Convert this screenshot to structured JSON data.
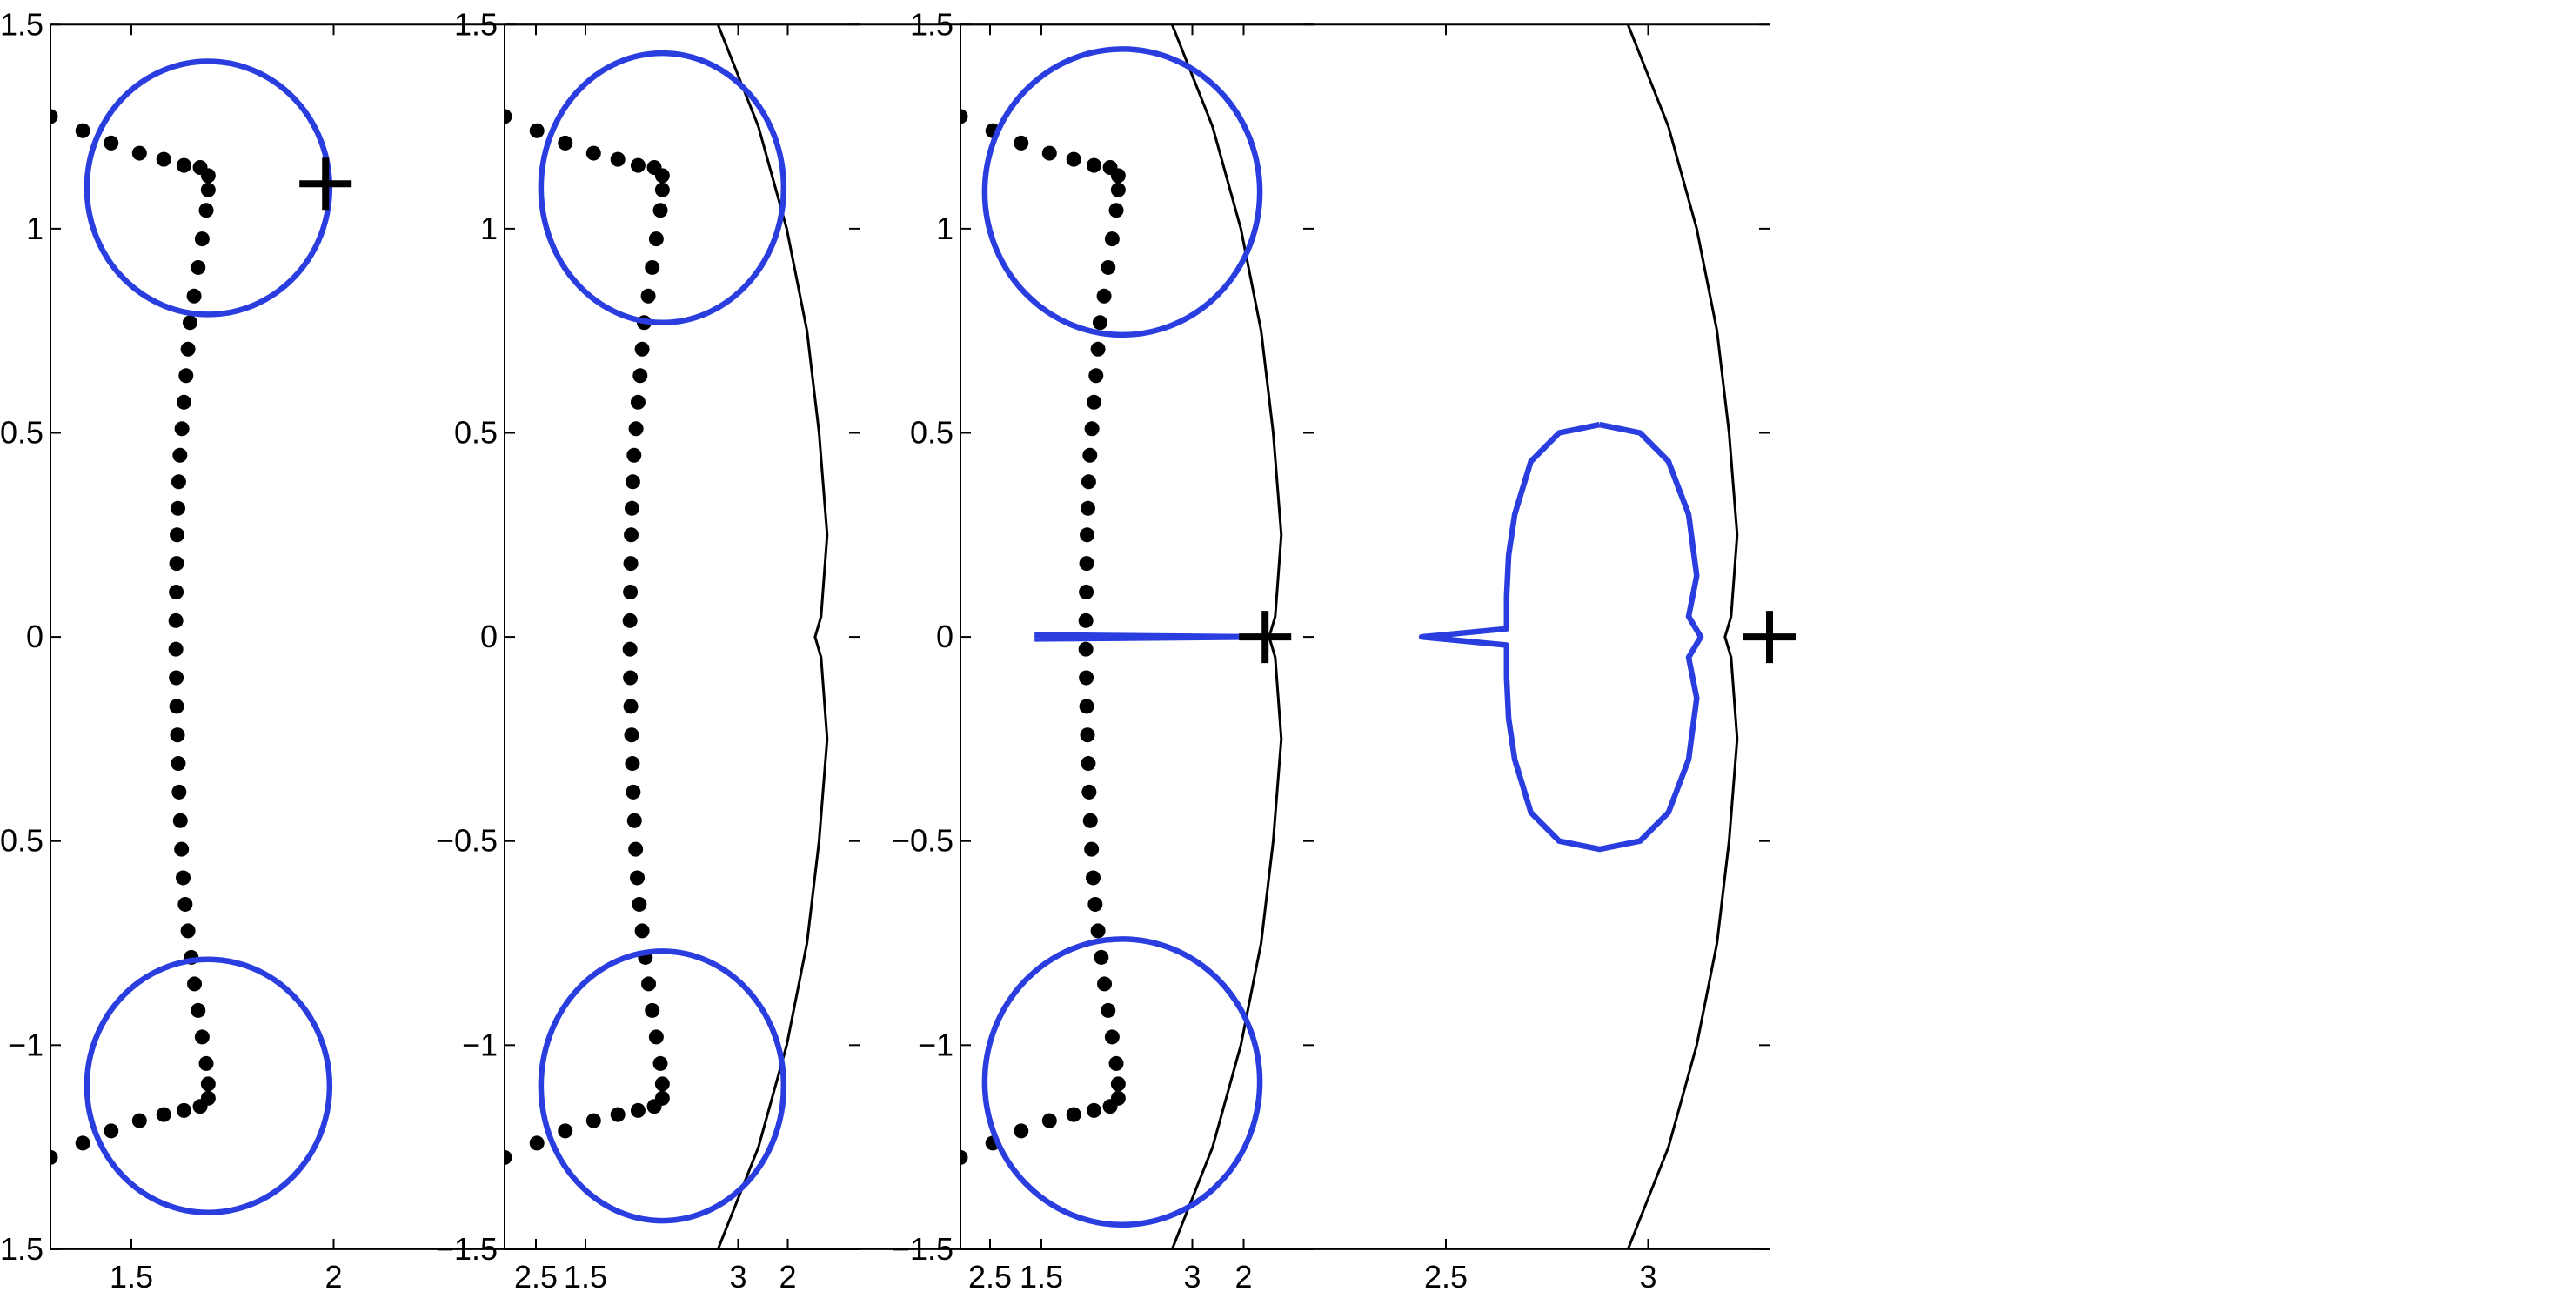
{
  "colors": {
    "contour": "#2a3ee0",
    "points": "#000000",
    "axes": "#000000"
  },
  "chart_data": [
    {
      "type": "scatter",
      "title": "",
      "xlabel": "",
      "ylabel": "",
      "xlim": [
        1.3,
        3.3
      ],
      "ylim": [
        -1.5,
        1.5
      ],
      "xticks": [
        "1.5",
        "2",
        "2.5",
        "3"
      ],
      "yticks": [
        "-1.5",
        "-1",
        "-0.5",
        "0",
        "0.5",
        "1",
        "1.5"
      ],
      "grid": false,
      "series": [
        {
          "kind": "points",
          "points": [
            [
              1.3,
              1.275
            ],
            [
              1.38,
              1.24
            ],
            [
              1.45,
              1.21
            ],
            [
              1.52,
              1.185
            ],
            [
              1.58,
              1.17
            ],
            [
              1.63,
              1.155
            ],
            [
              1.67,
              1.15
            ],
            [
              1.69,
              1.13
            ],
            [
              1.69,
              1.095
            ],
            [
              1.685,
              1.045
            ],
            [
              1.675,
              0.975
            ],
            [
              1.665,
              0.905
            ],
            [
              1.655,
              0.835
            ],
            [
              1.645,
              0.77
            ],
            [
              1.64,
              0.705
            ],
            [
              1.635,
              0.64
            ],
            [
              1.63,
              0.575
            ],
            [
              1.625,
              0.51
            ],
            [
              1.62,
              0.445
            ],
            [
              1.617,
              0.38
            ],
            [
              1.615,
              0.315
            ],
            [
              1.613,
              0.25
            ],
            [
              1.612,
              0.18
            ],
            [
              1.611,
              0.11
            ],
            [
              1.61,
              0.04
            ],
            [
              1.61,
              -0.03
            ],
            [
              1.611,
              -0.1
            ],
            [
              1.612,
              -0.17
            ],
            [
              1.614,
              -0.24
            ],
            [
              1.616,
              -0.31
            ],
            [
              1.618,
              -0.38
            ],
            [
              1.621,
              -0.45
            ],
            [
              1.624,
              -0.52
            ],
            [
              1.628,
              -0.59
            ],
            [
              1.633,
              -0.655
            ],
            [
              1.64,
              -0.72
            ],
            [
              1.648,
              -0.785
            ],
            [
              1.656,
              -0.85
            ],
            [
              1.665,
              -0.915
            ],
            [
              1.675,
              -0.98
            ],
            [
              1.685,
              -1.045
            ],
            [
              1.69,
              -1.095
            ],
            [
              1.69,
              -1.13
            ],
            [
              1.67,
              -1.15
            ],
            [
              1.63,
              -1.16
            ],
            [
              1.58,
              -1.17
            ],
            [
              1.52,
              -1.185
            ],
            [
              1.45,
              -1.21
            ],
            [
              1.38,
              -1.24
            ],
            [
              1.3,
              -1.275
            ]
          ]
        },
        {
          "kind": "boundary",
          "points": [
            [
              2.95,
              1.5
            ],
            [
              3.05,
              1.25
            ],
            [
              3.12,
              1.0
            ],
            [
              3.17,
              0.75
            ],
            [
              3.2,
              0.5
            ],
            [
              3.22,
              0.25
            ],
            [
              3.205,
              0.05
            ],
            [
              3.19,
              0.0
            ],
            [
              3.205,
              -0.05
            ],
            [
              3.22,
              -0.25
            ],
            [
              3.2,
              -0.5
            ],
            [
              3.17,
              -0.75
            ],
            [
              3.12,
              -1.0
            ],
            [
              3.05,
              -1.25
            ],
            [
              2.95,
              -1.5
            ]
          ]
        },
        {
          "kind": "contour",
          "shape": "ellipse",
          "center": [
            1.69,
            1.1
          ],
          "radius": [
            0.3,
            0.31
          ]
        },
        {
          "kind": "contour",
          "shape": "ellipse",
          "center": [
            1.69,
            -1.1
          ],
          "radius": [
            0.3,
            0.31
          ]
        },
        {
          "kind": "marker",
          "symbol": "plus",
          "point": [
            1.98,
            1.11
          ]
        }
      ]
    },
    {
      "type": "scatter",
      "title": "",
      "xlabel": "",
      "ylabel": "",
      "xlim": [
        1.3,
        3.3
      ],
      "ylim": [
        -1.5,
        1.5
      ],
      "xticks": [
        "1.5",
        "2",
        "2.5",
        "3"
      ],
      "yticks": [
        "-1.5",
        "-1",
        "-0.5",
        "0",
        "0.5",
        "1",
        "1.5"
      ],
      "grid": false,
      "series": [
        {
          "kind": "points",
          "points": [
            [
              1.3,
              1.275
            ],
            [
              1.38,
              1.24
            ],
            [
              1.45,
              1.21
            ],
            [
              1.52,
              1.185
            ],
            [
              1.58,
              1.17
            ],
            [
              1.63,
              1.155
            ],
            [
              1.67,
              1.15
            ],
            [
              1.69,
              1.13
            ],
            [
              1.69,
              1.095
            ],
            [
              1.685,
              1.045
            ],
            [
              1.675,
              0.975
            ],
            [
              1.665,
              0.905
            ],
            [
              1.655,
              0.835
            ],
            [
              1.645,
              0.77
            ],
            [
              1.64,
              0.705
            ],
            [
              1.635,
              0.64
            ],
            [
              1.63,
              0.575
            ],
            [
              1.625,
              0.51
            ],
            [
              1.62,
              0.445
            ],
            [
              1.617,
              0.38
            ],
            [
              1.615,
              0.315
            ],
            [
              1.613,
              0.25
            ],
            [
              1.612,
              0.18
            ],
            [
              1.611,
              0.11
            ],
            [
              1.61,
              0.04
            ],
            [
              1.61,
              -0.03
            ],
            [
              1.611,
              -0.1
            ],
            [
              1.612,
              -0.17
            ],
            [
              1.614,
              -0.24
            ],
            [
              1.616,
              -0.31
            ],
            [
              1.618,
              -0.38
            ],
            [
              1.621,
              -0.45
            ],
            [
              1.624,
              -0.52
            ],
            [
              1.628,
              -0.59
            ],
            [
              1.633,
              -0.655
            ],
            [
              1.64,
              -0.72
            ],
            [
              1.648,
              -0.785
            ],
            [
              1.656,
              -0.85
            ],
            [
              1.665,
              -0.915
            ],
            [
              1.675,
              -0.98
            ],
            [
              1.685,
              -1.045
            ],
            [
              1.69,
              -1.095
            ],
            [
              1.69,
              -1.13
            ],
            [
              1.67,
              -1.15
            ],
            [
              1.63,
              -1.16
            ],
            [
              1.58,
              -1.17
            ],
            [
              1.52,
              -1.185
            ],
            [
              1.45,
              -1.21
            ],
            [
              1.38,
              -1.24
            ],
            [
              1.3,
              -1.275
            ]
          ]
        },
        {
          "kind": "boundary",
          "points": [
            [
              2.95,
              1.5
            ],
            [
              3.05,
              1.25
            ],
            [
              3.12,
              1.0
            ],
            [
              3.17,
              0.75
            ],
            [
              3.2,
              0.5
            ],
            [
              3.22,
              0.25
            ],
            [
              3.205,
              0.05
            ],
            [
              3.19,
              0.0
            ],
            [
              3.205,
              -0.05
            ],
            [
              3.22,
              -0.25
            ],
            [
              3.2,
              -0.5
            ],
            [
              3.17,
              -0.75
            ],
            [
              3.12,
              -1.0
            ],
            [
              3.05,
              -1.25
            ],
            [
              2.95,
              -1.5
            ]
          ]
        },
        {
          "kind": "contour",
          "shape": "ellipse",
          "center": [
            1.69,
            1.1
          ],
          "radius": [
            0.3,
            0.33
          ]
        },
        {
          "kind": "contour",
          "shape": "ellipse",
          "center": [
            1.69,
            -1.1
          ],
          "radius": [
            0.3,
            0.33
          ]
        },
        {
          "kind": "contour",
          "shape": "polyline",
          "points": [
            [
              2.61,
              0.005
            ],
            [
              3.18,
              0.0
            ],
            [
              2.61,
              -0.005
            ]
          ]
        },
        {
          "kind": "marker",
          "symbol": "plus",
          "point": [
            3.18,
            0.0
          ]
        }
      ]
    },
    {
      "type": "scatter",
      "title": "",
      "xlabel": "",
      "ylabel": "",
      "xlim": [
        1.3,
        3.3
      ],
      "ylim": [
        -1.5,
        1.5
      ],
      "xticks": [
        "1.5",
        "2",
        "2.5",
        "3"
      ],
      "yticks": [
        "-1.5",
        "-1",
        "-0.5",
        "0",
        "0.5",
        "1",
        "1.5"
      ],
      "grid": false,
      "series": [
        {
          "kind": "points",
          "points": [
            [
              1.3,
              1.275
            ],
            [
              1.38,
              1.24
            ],
            [
              1.45,
              1.21
            ],
            [
              1.52,
              1.185
            ],
            [
              1.58,
              1.17
            ],
            [
              1.63,
              1.155
            ],
            [
              1.67,
              1.15
            ],
            [
              1.69,
              1.13
            ],
            [
              1.69,
              1.095
            ],
            [
              1.685,
              1.045
            ],
            [
              1.675,
              0.975
            ],
            [
              1.665,
              0.905
            ],
            [
              1.655,
              0.835
            ],
            [
              1.645,
              0.77
            ],
            [
              1.64,
              0.705
            ],
            [
              1.635,
              0.64
            ],
            [
              1.63,
              0.575
            ],
            [
              1.625,
              0.51
            ],
            [
              1.62,
              0.445
            ],
            [
              1.617,
              0.38
            ],
            [
              1.615,
              0.315
            ],
            [
              1.613,
              0.25
            ],
            [
              1.612,
              0.18
            ],
            [
              1.611,
              0.11
            ],
            [
              1.61,
              0.04
            ],
            [
              1.61,
              -0.03
            ],
            [
              1.611,
              -0.1
            ],
            [
              1.612,
              -0.17
            ],
            [
              1.614,
              -0.24
            ],
            [
              1.616,
              -0.31
            ],
            [
              1.618,
              -0.38
            ],
            [
              1.621,
              -0.45
            ],
            [
              1.624,
              -0.52
            ],
            [
              1.628,
              -0.59
            ],
            [
              1.633,
              -0.655
            ],
            [
              1.64,
              -0.72
            ],
            [
              1.648,
              -0.785
            ],
            [
              1.656,
              -0.85
            ],
            [
              1.665,
              -0.915
            ],
            [
              1.675,
              -0.98
            ],
            [
              1.685,
              -1.045
            ],
            [
              1.69,
              -1.095
            ],
            [
              1.69,
              -1.13
            ],
            [
              1.67,
              -1.15
            ],
            [
              1.63,
              -1.16
            ],
            [
              1.58,
              -1.17
            ],
            [
              1.52,
              -1.185
            ],
            [
              1.45,
              -1.21
            ],
            [
              1.38,
              -1.24
            ],
            [
              1.3,
              -1.275
            ]
          ]
        },
        {
          "kind": "boundary",
          "points": [
            [
              2.95,
              1.5
            ],
            [
              3.05,
              1.25
            ],
            [
              3.12,
              1.0
            ],
            [
              3.17,
              0.75
            ],
            [
              3.2,
              0.5
            ],
            [
              3.22,
              0.25
            ],
            [
              3.205,
              0.05
            ],
            [
              3.19,
              0.0
            ],
            [
              3.205,
              -0.05
            ],
            [
              3.22,
              -0.25
            ],
            [
              3.2,
              -0.5
            ],
            [
              3.17,
              -0.75
            ],
            [
              3.12,
              -1.0
            ],
            [
              3.05,
              -1.25
            ],
            [
              2.95,
              -1.5
            ]
          ]
        },
        {
          "kind": "contour",
          "shape": "ellipse",
          "center": [
            1.7,
            1.09
          ],
          "radius": [
            0.34,
            0.35
          ]
        },
        {
          "kind": "contour",
          "shape": "ellipse",
          "center": [
            1.7,
            -1.09
          ],
          "radius": [
            0.34,
            0.35
          ]
        },
        {
          "kind": "contour",
          "shape": "polyline",
          "points": [
            [
              2.88,
              0.52
            ],
            [
              2.98,
              0.5
            ],
            [
              3.05,
              0.43
            ],
            [
              3.1,
              0.3
            ],
            [
              3.12,
              0.15
            ],
            [
              3.1,
              0.05
            ],
            [
              3.13,
              0.0
            ],
            [
              3.1,
              -0.05
            ],
            [
              3.12,
              -0.15
            ],
            [
              3.1,
              -0.3
            ],
            [
              3.05,
              -0.43
            ],
            [
              2.98,
              -0.5
            ],
            [
              2.88,
              -0.52
            ],
            [
              2.78,
              -0.5
            ],
            [
              2.71,
              -0.43
            ],
            [
              2.67,
              -0.3
            ],
            [
              2.655,
              -0.2
            ],
            [
              2.65,
              -0.1
            ],
            [
              2.65,
              -0.02
            ],
            [
              2.44,
              0.0
            ],
            [
              2.65,
              0.02
            ],
            [
              2.65,
              0.1
            ],
            [
              2.655,
              0.2
            ],
            [
              2.67,
              0.3
            ],
            [
              2.71,
              0.43
            ],
            [
              2.78,
              0.5
            ],
            [
              2.88,
              0.52
            ]
          ]
        },
        {
          "kind": "marker",
          "symbol": "plus",
          "point": [
            3.3,
            0.0
          ]
        }
      ]
    }
  ]
}
